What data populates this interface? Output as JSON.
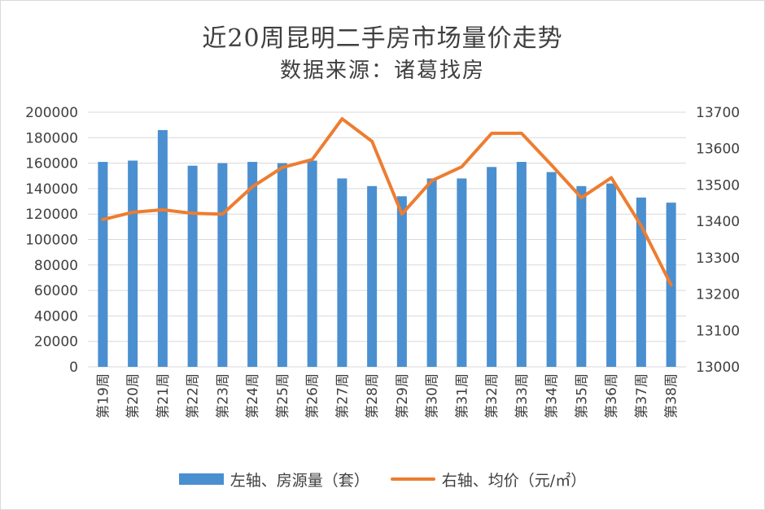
{
  "title": "近20周昆明二手房市场量价走势",
  "subtitle": "数据来源：诸葛找房",
  "colors": {
    "bar": "#4a8fd0",
    "line": "#ed7d31",
    "grid": "#d9d9d9",
    "text": "#404040"
  },
  "legend": {
    "bar_label": "左轴、房源量（套）",
    "line_label": "右轴、均价（元/㎡）"
  },
  "chart_data": {
    "type": "bar",
    "categories": [
      "第19周",
      "第20周",
      "第21周",
      "第22周",
      "第23周",
      "第24周",
      "第25周",
      "第26周",
      "第27周",
      "第28周",
      "第29周",
      "第30周",
      "第31周",
      "第32周",
      "第33周",
      "第34周",
      "第35周",
      "第36周",
      "第37周",
      "第38周"
    ],
    "series": [
      {
        "name": "左轴、房源量（套）",
        "type": "bar",
        "axis": "left",
        "values": [
          161000,
          162000,
          186000,
          158000,
          160000,
          161000,
          160000,
          162000,
          148000,
          142000,
          134000,
          148000,
          148000,
          157000,
          161000,
          153000,
          142000,
          144000,
          133000,
          129000
        ]
      },
      {
        "name": "右轴、均价（元/㎡）",
        "type": "line",
        "axis": "right",
        "values": [
          13405,
          13425,
          13432,
          13422,
          13420,
          13495,
          13548,
          13570,
          13682,
          13620,
          13420,
          13512,
          13550,
          13642,
          13642,
          13555,
          13465,
          13520,
          13388,
          13225
        ]
      }
    ],
    "y_left": {
      "min": 0,
      "max": 200000,
      "ticks": [
        "0",
        "20000",
        "40000",
        "60000",
        "80000",
        "100000",
        "120000",
        "140000",
        "160000",
        "180000",
        "200000"
      ]
    },
    "y_right": {
      "min": 13000,
      "max": 13700,
      "ticks": [
        "13000",
        "13100",
        "13200",
        "13300",
        "13400",
        "13500",
        "13600",
        "13700"
      ]
    },
    "grid": true,
    "legend_position": "bottom"
  }
}
